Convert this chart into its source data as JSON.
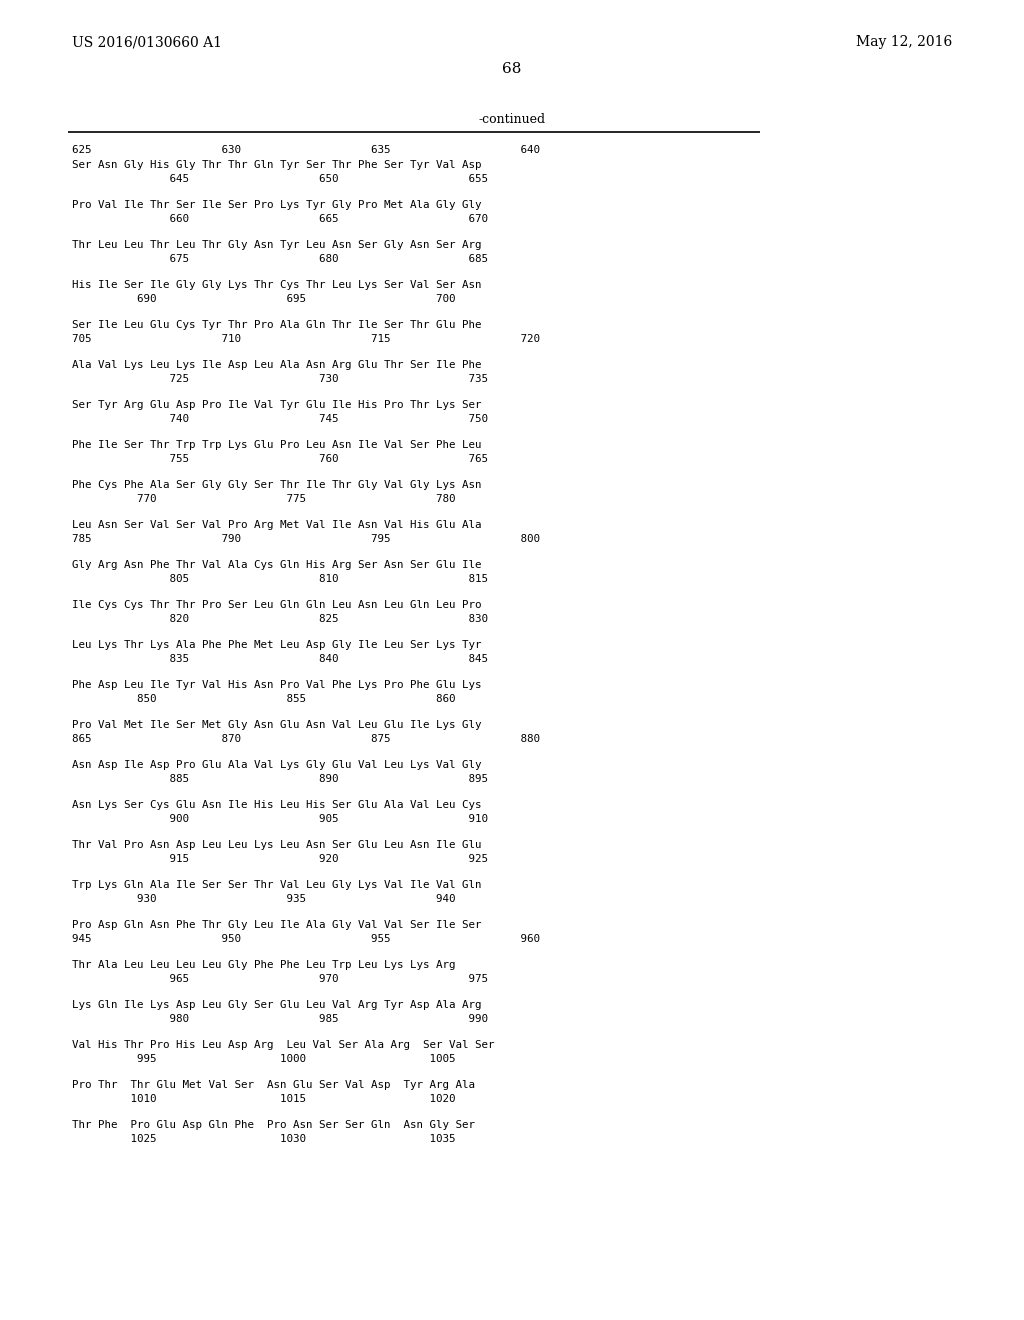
{
  "header_left": "US 2016/0130660 A1",
  "header_right": "May 12, 2016",
  "page_number": "68",
  "continued_text": "-continued",
  "background_color": "#ffffff",
  "text_color": "#000000",
  "ruler_text": "625                    630                    635                    640",
  "sequence_blocks": [
    [
      "Ser Asn Gly His Gly Thr Thr Gln Tyr Ser Thr Phe Ser Tyr Val Asp",
      "               645                    650                    655"
    ],
    [
      "Pro Val Ile Thr Ser Ile Ser Pro Lys Tyr Gly Pro Met Ala Gly Gly",
      "               660                    665                    670"
    ],
    [
      "Thr Leu Leu Thr Leu Thr Gly Asn Tyr Leu Asn Ser Gly Asn Ser Arg",
      "               675                    680                    685"
    ],
    [
      "His Ile Ser Ile Gly Gly Lys Thr Cys Thr Leu Lys Ser Val Ser Asn",
      "          690                    695                    700"
    ],
    [
      "Ser Ile Leu Glu Cys Tyr Thr Pro Ala Gln Thr Ile Ser Thr Glu Phe",
      "705                    710                    715                    720"
    ],
    [
      "Ala Val Lys Leu Lys Ile Asp Leu Ala Asn Arg Glu Thr Ser Ile Phe",
      "               725                    730                    735"
    ],
    [
      "Ser Tyr Arg Glu Asp Pro Ile Val Tyr Glu Ile His Pro Thr Lys Ser",
      "               740                    745                    750"
    ],
    [
      "Phe Ile Ser Thr Trp Trp Lys Glu Pro Leu Asn Ile Val Ser Phe Leu",
      "               755                    760                    765"
    ],
    [
      "Phe Cys Phe Ala Ser Gly Gly Ser Thr Ile Thr Gly Val Gly Lys Asn",
      "          770                    775                    780"
    ],
    [
      "Leu Asn Ser Val Ser Val Pro Arg Met Val Ile Asn Val His Glu Ala",
      "785                    790                    795                    800"
    ],
    [
      "Gly Arg Asn Phe Thr Val Ala Cys Gln His Arg Ser Asn Ser Glu Ile",
      "               805                    810                    815"
    ],
    [
      "Ile Cys Cys Thr Thr Pro Ser Leu Gln Gln Leu Asn Leu Gln Leu Pro",
      "               820                    825                    830"
    ],
    [
      "Leu Lys Thr Lys Ala Phe Phe Met Leu Asp Gly Ile Leu Ser Lys Tyr",
      "               835                    840                    845"
    ],
    [
      "Phe Asp Leu Ile Tyr Val His Asn Pro Val Phe Lys Pro Phe Glu Lys",
      "          850                    855                    860"
    ],
    [
      "Pro Val Met Ile Ser Met Gly Asn Glu Asn Val Leu Glu Ile Lys Gly",
      "865                    870                    875                    880"
    ],
    [
      "Asn Asp Ile Asp Pro Glu Ala Val Lys Gly Glu Val Leu Lys Val Gly",
      "               885                    890                    895"
    ],
    [
      "Asn Lys Ser Cys Glu Asn Ile His Leu His Ser Glu Ala Val Leu Cys",
      "               900                    905                    910"
    ],
    [
      "Thr Val Pro Asn Asp Leu Leu Lys Leu Asn Ser Glu Leu Asn Ile Glu",
      "               915                    920                    925"
    ],
    [
      "Trp Lys Gln Ala Ile Ser Ser Thr Val Leu Gly Lys Val Ile Val Gln",
      "          930                    935                    940"
    ],
    [
      "Pro Asp Gln Asn Phe Thr Gly Leu Ile Ala Gly Val Val Ser Ile Ser",
      "945                    950                    955                    960"
    ],
    [
      "Thr Ala Leu Leu Leu Leu Gly Phe Phe Leu Trp Leu Lys Lys Arg",
      "               965                    970                    975"
    ],
    [
      "Lys Gln Ile Lys Asp Leu Gly Ser Glu Leu Val Arg Tyr Asp Ala Arg",
      "               980                    985                    990"
    ],
    [
      "Val His Thr Pro His Leu Asp Arg  Leu Val Ser Ala Arg  Ser Val Ser",
      "          995                   1000                   1005"
    ],
    [
      "Pro Thr  Thr Glu Met Val Ser  Asn Glu Ser Val Asp  Tyr Arg Ala",
      "         1010                   1015                   1020"
    ],
    [
      "Thr Phe  Pro Glu Asp Gln Phe  Pro Asn Ser Ser Gln  Asn Gly Ser",
      "         1025                   1030                   1035"
    ]
  ]
}
